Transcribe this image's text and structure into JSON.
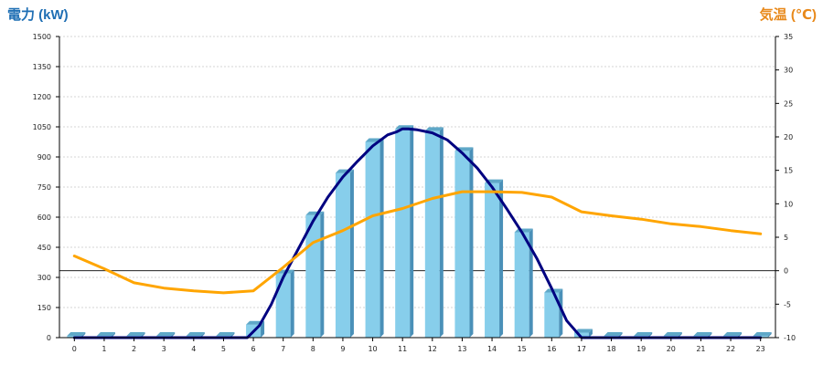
{
  "chart_data": {
    "type": "bar+line",
    "left_axis_title": "電力 (kW)",
    "right_axis_title": "気温 (℃)",
    "x": [
      0,
      1,
      2,
      3,
      4,
      5,
      6,
      7,
      8,
      9,
      10,
      11,
      12,
      13,
      14,
      15,
      16,
      17,
      18,
      19,
      20,
      21,
      22,
      23
    ],
    "x_tick_labels": [
      "0",
      "1",
      "2",
      "3",
      "4",
      "5",
      "6",
      "7",
      "8",
      "9",
      "10",
      "11",
      "12",
      "13",
      "14",
      "15",
      "16",
      "17",
      "18",
      "19",
      "20",
      "21",
      "22",
      "23"
    ],
    "left_ylim": [
      0,
      1500
    ],
    "left_ticks": [
      0,
      150,
      300,
      450,
      600,
      750,
      900,
      1050,
      1200,
      1350,
      1500
    ],
    "right_ylim": [
      -10,
      35
    ],
    "right_ticks": [
      -10,
      -5,
      0,
      5,
      10,
      15,
      20,
      25,
      30,
      35
    ],
    "grid": true,
    "series": [
      {
        "kind": "bar",
        "axis": "left",
        "values": [
          0,
          0,
          0,
          0,
          0,
          0,
          65,
          320,
          610,
          820,
          975,
          1040,
          1030,
          930,
          770,
          525,
          225,
          25,
          0,
          0,
          0,
          0,
          0,
          0
        ],
        "color": "#87CEEB",
        "side_color": "#4A90B8",
        "top_color": "#5FA8C8"
      },
      {
        "kind": "line",
        "axis": "left",
        "x": [
          0,
          1,
          2,
          3,
          4,
          5,
          5.8,
          6.2,
          6.6,
          7,
          7.5,
          8,
          8.5,
          9,
          9.5,
          10,
          10.5,
          10.8,
          11,
          11.2,
          11.5,
          12,
          12.5,
          13,
          13.5,
          14,
          14.5,
          15,
          15.5,
          16,
          16.5,
          17,
          17.5,
          18,
          19,
          20,
          21,
          22,
          23
        ],
        "values": [
          0,
          0,
          0,
          0,
          0,
          0,
          0,
          60,
          165,
          300,
          440,
          580,
          700,
          800,
          880,
          955,
          1010,
          1025,
          1040,
          1040,
          1035,
          1020,
          985,
          920,
          845,
          750,
          640,
          525,
          395,
          245,
          85,
          0,
          0,
          0,
          0,
          0,
          0,
          0,
          0
        ],
        "color": "#000080"
      },
      {
        "kind": "line",
        "axis": "right",
        "x": [
          0,
          1,
          2,
          3,
          4,
          5,
          6,
          7,
          8,
          9,
          10,
          11,
          12,
          13,
          14,
          15,
          16,
          17,
          18,
          19,
          20,
          21,
          22,
          23
        ],
        "values": [
          2.2,
          0.3,
          -1.8,
          -2.6,
          -3.0,
          -3.3,
          -3.0,
          0.5,
          4.2,
          6.0,
          8.2,
          9.3,
          10.8,
          11.8,
          11.8,
          11.7,
          11.0,
          8.8,
          8.2,
          7.7,
          7.0,
          6.6,
          6.0,
          5.5
        ],
        "color": "#FFA500"
      }
    ],
    "zero_reference_line": {
      "axis": "right",
      "value": 0,
      "color": "#000000"
    }
  }
}
